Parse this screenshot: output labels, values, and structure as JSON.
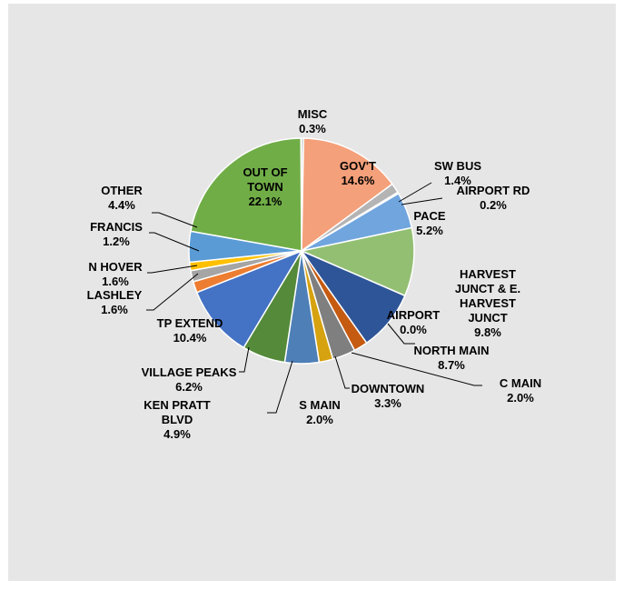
{
  "chart_data": {
    "type": "pie",
    "title": "",
    "start": "12 o'clock",
    "direction": "clockwise",
    "legend": "none",
    "slices": [
      {
        "label": [
          "MISC"
        ],
        "value": "0.3%",
        "pct": 0.3,
        "color": "#a5a5a5"
      },
      {
        "label": [
          "GOV'T"
        ],
        "value": "14.6%",
        "pct": 14.6,
        "color": "#f4a07a"
      },
      {
        "label": [
          "SW BUS"
        ],
        "value": "1.4%",
        "pct": 1.4,
        "color": "#b4b4b4"
      },
      {
        "label": [
          "AIRPORT RD"
        ],
        "value": "0.2%",
        "pct": 0.2,
        "color": "#ffc000"
      },
      {
        "label": [
          "PACE"
        ],
        "value": "5.2%",
        "pct": 5.2,
        "color": "#70a5de"
      },
      {
        "label": [
          "HARVEST",
          "JUNCT & E.",
          "HARVEST",
          "JUNCT"
        ],
        "value": "9.8%",
        "pct": 9.8,
        "color": "#93bf73"
      },
      {
        "label": [
          "AIRPORT"
        ],
        "value": "0.0%",
        "pct": 0.0,
        "color": "#2e5597"
      },
      {
        "label": [
          "NORTH MAIN"
        ],
        "value": "8.7%",
        "pct": 8.7,
        "color": "#2e5597"
      },
      {
        "label": [
          "C MAIN"
        ],
        "value": "2.0%",
        "pct": 2.0,
        "color": "#c55a11"
      },
      {
        "label": [
          "DOWNTOWN"
        ],
        "value": "3.3%",
        "pct": 3.3,
        "color": "#7f7f7f"
      },
      {
        "label": [
          "S MAIN"
        ],
        "value": "2.0%",
        "pct": 2.0,
        "color": "#d6a20f"
      },
      {
        "label": [
          "KEN PRATT",
          "BLVD"
        ],
        "value": "4.9%",
        "pct": 4.9,
        "color": "#4e7fb6"
      },
      {
        "label": [
          "VILLAGE PEAKS"
        ],
        "value": "6.2%",
        "pct": 6.2,
        "color": "#548a3a"
      },
      {
        "label": [
          "TP EXTEND"
        ],
        "value": "10.4%",
        "pct": 10.4,
        "color": "#4472c4"
      },
      {
        "label": [
          "LASHLEY"
        ],
        "value": "1.6%",
        "pct": 1.6,
        "color": "#ed7d31"
      },
      {
        "label": [
          "N HOVER"
        ],
        "value": "1.6%",
        "pct": 1.6,
        "color": "#a5a5a5"
      },
      {
        "label": [
          "FRANCIS"
        ],
        "value": "1.2%",
        "pct": 1.2,
        "color": "#ffc000"
      },
      {
        "label": [
          "OTHER"
        ],
        "value": "4.4%",
        "pct": 4.4,
        "color": "#5b9bd5"
      },
      {
        "label": [
          "OUT OF",
          "TOWN"
        ],
        "value": "22.1%",
        "pct": 22.1,
        "color": "#70ad47"
      }
    ]
  }
}
